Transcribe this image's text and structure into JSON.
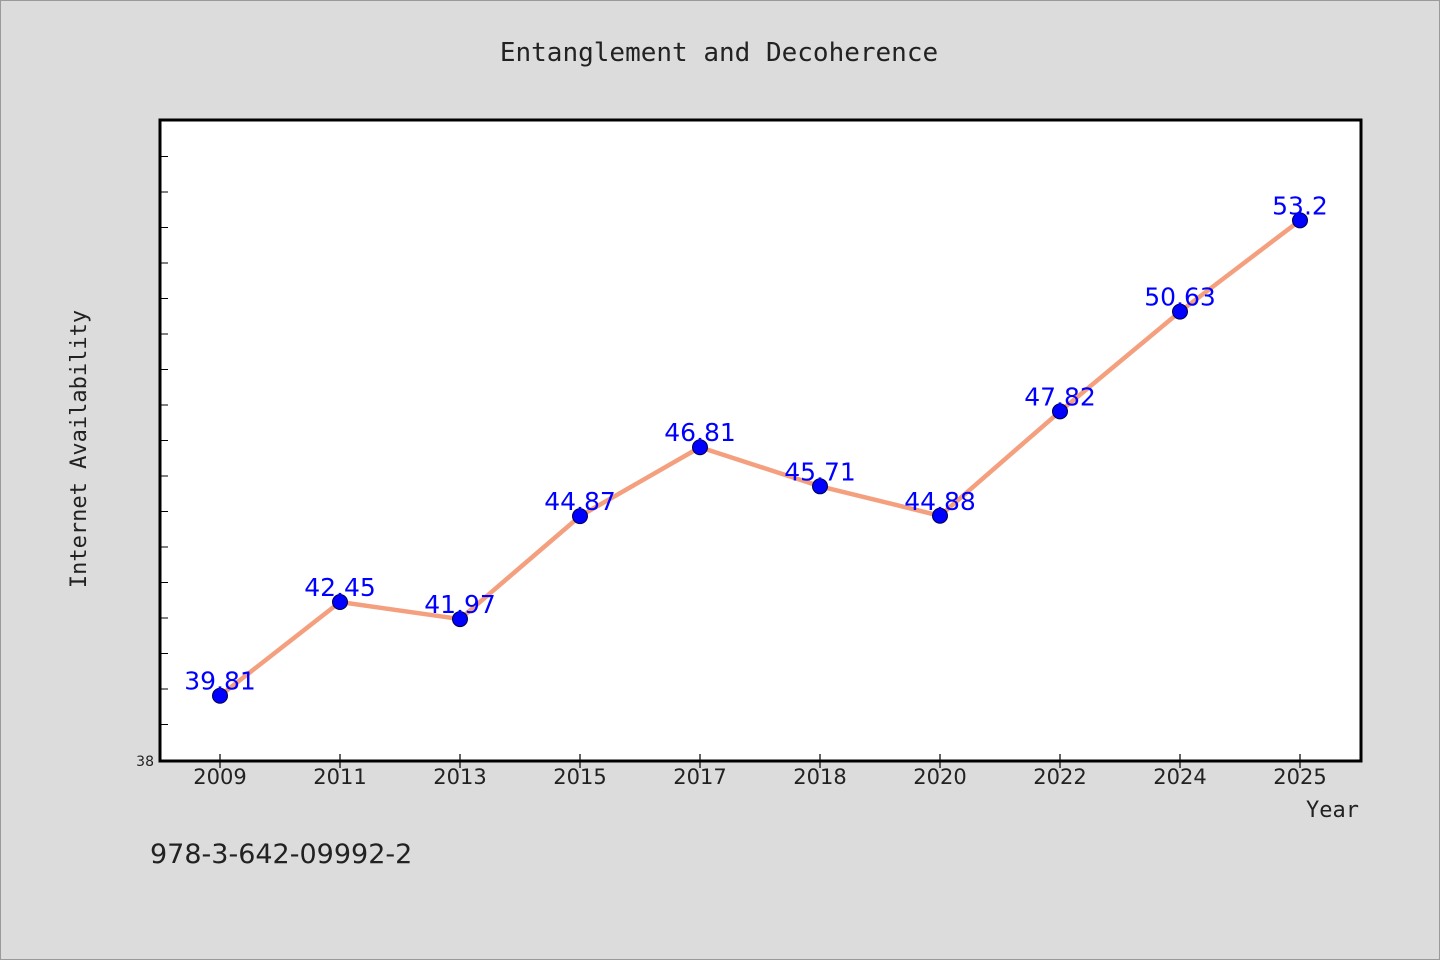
{
  "chart_data": {
    "type": "line",
    "title": "Entanglement and Decoherence",
    "xlabel": "Year",
    "ylabel": "Internet Availability",
    "categories": [
      "2009",
      "2011",
      "2013",
      "2015",
      "2017",
      "2018",
      "2020",
      "2022",
      "2024",
      "2025"
    ],
    "series": [
      {
        "values": [
          39.81,
          42.45,
          41.97,
          44.87,
          46.81,
          45.71,
          44.88,
          47.82,
          50.63,
          53.2
        ],
        "labels": [
          "39.81",
          "42.45",
          "41.97",
          "44.87",
          "46.81",
          "45.71",
          "44.88",
          "47.82",
          "50.63",
          "53.2"
        ],
        "line_color": "#f4a07f",
        "marker_color": "#0000ff"
      }
    ],
    "ylim": [
      38,
      56
    ],
    "ytick_labels": [
      "38"
    ],
    "ytick_step": 1,
    "grid": false,
    "data_label_color": "#0000ff"
  },
  "footer": {
    "isbn": "978-3-642-09992-2"
  }
}
